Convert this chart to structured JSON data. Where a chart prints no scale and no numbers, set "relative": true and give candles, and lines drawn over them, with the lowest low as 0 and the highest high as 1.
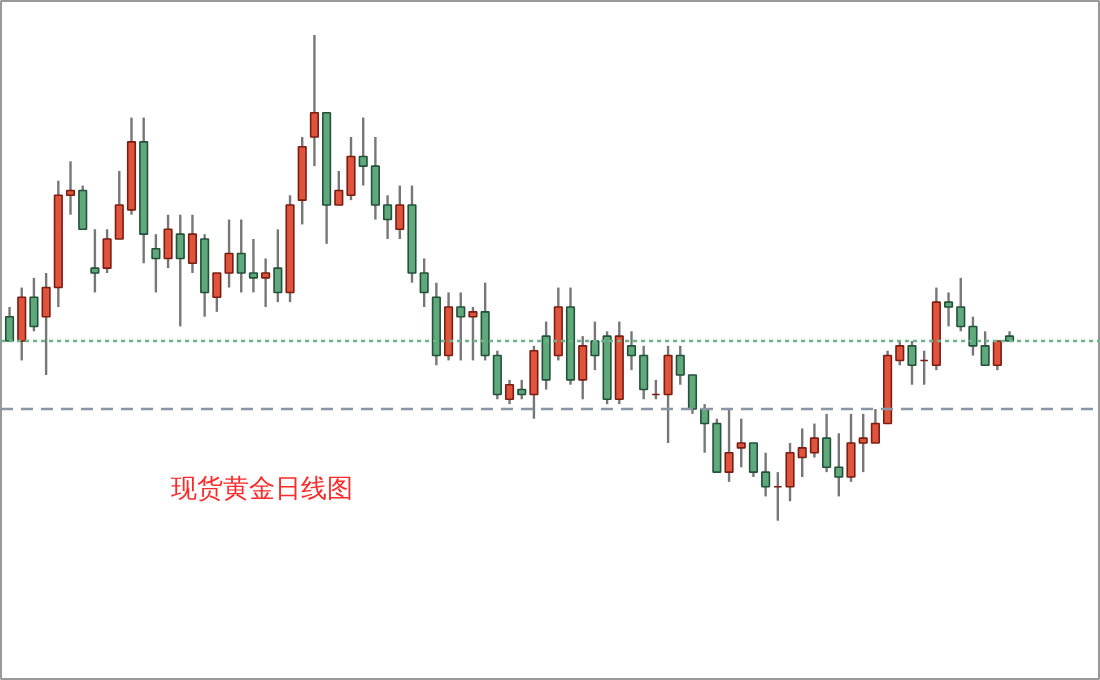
{
  "chart_data": {
    "type": "candlestick",
    "relative": true,
    "categories": [
      null,
      null,
      null,
      null,
      null,
      null,
      null,
      null,
      null,
      null,
      null,
      null,
      null,
      null,
      null,
      null,
      null,
      null,
      null,
      null,
      null,
      null,
      null,
      null,
      null,
      null,
      null,
      null,
      null,
      null,
      null,
      null,
      null,
      null,
      null,
      null,
      null,
      null,
      null,
      null,
      null,
      null,
      null,
      null,
      null,
      null,
      null,
      null,
      null,
      null,
      null,
      null,
      null,
      null,
      null,
      null,
      null,
      null,
      null,
      null,
      null,
      null,
      null,
      null,
      null,
      null,
      null,
      null,
      null,
      null,
      null,
      null,
      null,
      null,
      null,
      null,
      null,
      null,
      null,
      null,
      null,
      null,
      null
    ],
    "ohlc": [
      [
        0.42,
        0.44,
        0.37,
        0.37
      ],
      [
        0.37,
        0.48,
        0.33,
        0.46
      ],
      [
        0.46,
        0.5,
        0.39,
        0.4
      ],
      [
        0.42,
        0.51,
        0.3,
        0.48
      ],
      [
        0.48,
        0.7,
        0.44,
        0.67
      ],
      [
        0.67,
        0.74,
        0.63,
        0.68
      ],
      [
        0.68,
        0.69,
        0.6,
        0.6
      ],
      [
        0.52,
        0.6,
        0.47,
        0.51
      ],
      [
        0.52,
        0.6,
        0.51,
        0.58
      ],
      [
        0.58,
        0.72,
        0.58,
        0.65
      ],
      [
        0.64,
        0.83,
        0.63,
        0.78
      ],
      [
        0.78,
        0.83,
        0.53,
        0.59
      ],
      [
        0.56,
        0.59,
        0.47,
        0.54
      ],
      [
        0.54,
        0.63,
        0.52,
        0.6
      ],
      [
        0.59,
        0.63,
        0.4,
        0.54
      ],
      [
        0.53,
        0.63,
        0.51,
        0.59
      ],
      [
        0.58,
        0.59,
        0.42,
        0.47
      ],
      [
        0.46,
        0.51,
        0.43,
        0.51
      ],
      [
        0.51,
        0.62,
        0.48,
        0.55
      ],
      [
        0.55,
        0.62,
        0.47,
        0.51
      ],
      [
        0.51,
        0.58,
        0.47,
        0.5
      ],
      [
        0.5,
        0.54,
        0.44,
        0.51
      ],
      [
        0.52,
        0.6,
        0.45,
        0.47
      ],
      [
        0.47,
        0.67,
        0.45,
        0.65
      ],
      [
        0.66,
        0.79,
        0.61,
        0.77
      ],
      [
        0.79,
        1.0,
        0.73,
        0.84
      ],
      [
        0.84,
        0.84,
        0.57,
        0.65
      ],
      [
        0.65,
        0.72,
        0.65,
        0.68
      ],
      [
        0.67,
        0.79,
        0.66,
        0.75
      ],
      [
        0.75,
        0.83,
        0.69,
        0.73
      ],
      [
        0.73,
        0.79,
        0.62,
        0.65
      ],
      [
        0.65,
        0.67,
        0.58,
        0.62
      ],
      [
        0.6,
        0.69,
        0.58,
        0.65
      ],
      [
        0.65,
        0.69,
        0.49,
        0.51
      ],
      [
        0.51,
        0.54,
        0.44,
        0.47
      ],
      [
        0.46,
        0.49,
        0.32,
        0.34
      ],
      [
        0.34,
        0.47,
        0.33,
        0.44
      ],
      [
        0.44,
        0.47,
        0.33,
        0.42
      ],
      [
        0.42,
        0.44,
        0.33,
        0.43
      ],
      [
        0.43,
        0.49,
        0.33,
        0.34
      ],
      [
        0.34,
        0.35,
        0.25,
        0.26
      ],
      [
        0.25,
        0.29,
        0.24,
        0.28
      ],
      [
        0.27,
        0.29,
        0.25,
        0.26
      ],
      [
        0.26,
        0.36,
        0.21,
        0.35
      ],
      [
        0.38,
        0.41,
        0.27,
        0.29
      ],
      [
        0.34,
        0.48,
        0.33,
        0.44
      ],
      [
        0.44,
        0.48,
        0.28,
        0.29
      ],
      [
        0.29,
        0.38,
        0.25,
        0.36
      ],
      [
        0.37,
        0.41,
        0.31,
        0.34
      ],
      [
        0.38,
        0.39,
        0.24,
        0.25
      ],
      [
        0.25,
        0.41,
        0.24,
        0.38
      ],
      [
        0.36,
        0.39,
        0.31,
        0.34
      ],
      [
        0.34,
        0.36,
        0.25,
        0.27
      ],
      [
        0.26,
        0.29,
        0.25,
        0.26
      ],
      [
        0.26,
        0.36,
        0.16,
        0.34
      ],
      [
        0.34,
        0.36,
        0.28,
        0.3
      ],
      [
        0.3,
        0.3,
        0.22,
        0.23
      ],
      [
        0.23,
        0.24,
        0.14,
        0.2
      ],
      [
        0.2,
        0.21,
        0.1,
        0.1
      ],
      [
        0.1,
        0.23,
        0.08,
        0.14
      ],
      [
        0.15,
        0.21,
        0.11,
        0.16
      ],
      [
        0.16,
        0.16,
        0.09,
        0.1
      ],
      [
        0.1,
        0.14,
        0.05,
        0.07
      ],
      [
        0.07,
        0.1,
        0.0,
        0.07
      ],
      [
        0.07,
        0.16,
        0.04,
        0.14
      ],
      [
        0.13,
        0.19,
        0.09,
        0.15
      ],
      [
        0.14,
        0.2,
        0.13,
        0.17
      ],
      [
        0.17,
        0.22,
        0.1,
        0.11
      ],
      [
        0.11,
        0.18,
        0.05,
        0.09
      ],
      [
        0.09,
        0.22,
        0.08,
        0.16
      ],
      [
        0.16,
        0.22,
        0.1,
        0.17
      ],
      [
        0.16,
        0.23,
        0.16,
        0.2
      ],
      [
        0.2,
        0.35,
        0.2,
        0.34
      ],
      [
        0.33,
        0.37,
        0.32,
        0.36
      ],
      [
        0.36,
        0.37,
        0.28,
        0.32
      ],
      [
        0.33,
        0.35,
        0.28,
        0.33
      ],
      [
        0.32,
        0.48,
        0.31,
        0.45
      ],
      [
        0.45,
        0.47,
        0.4,
        0.44
      ],
      [
        0.44,
        0.5,
        0.39,
        0.4
      ],
      [
        0.4,
        0.42,
        0.34,
        0.36
      ],
      [
        0.36,
        0.39,
        0.32,
        0.32
      ],
      [
        0.32,
        0.37,
        0.31,
        0.37
      ],
      [
        0.38,
        0.39,
        0.37,
        0.37
      ]
    ],
    "ref_lines": [
      {
        "axis": "y",
        "value": 0.37,
        "color": "#6db48a",
        "line_style": "dotted"
      },
      {
        "axis": "y",
        "value": 0.23,
        "color": "#8a96a3",
        "line_style": "dashed"
      }
    ],
    "annotations": [
      "现货黄金日线图"
    ]
  }
}
